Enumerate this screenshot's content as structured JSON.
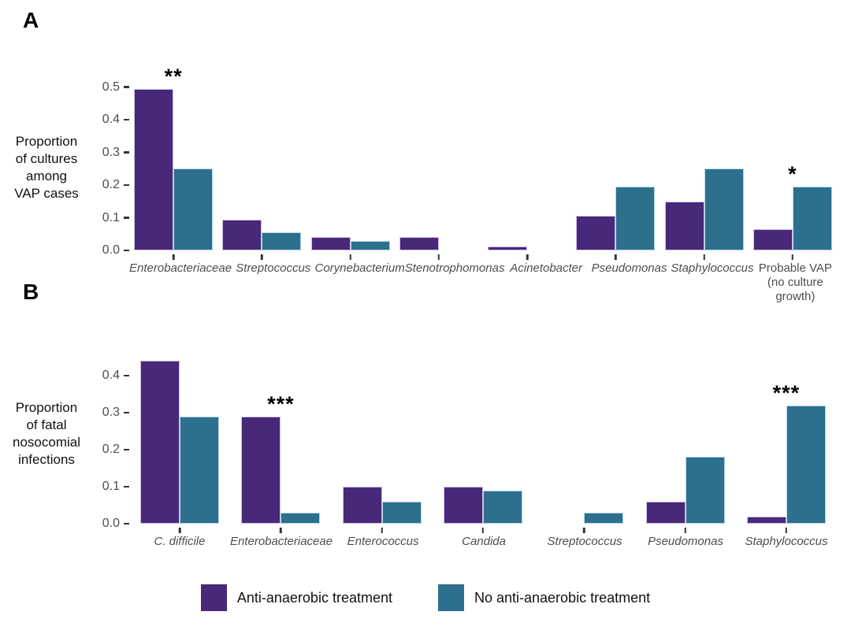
{
  "figure": {
    "panel_a_letter": "A",
    "panel_b_letter": "B"
  },
  "legend": {
    "items": [
      {
        "label": "Anti-anaerobic treatment",
        "color": "#482878"
      },
      {
        "label": "No anti-anaerobic treatment",
        "color": "#2d708e"
      }
    ]
  },
  "chart_data": [
    {
      "panel": "A",
      "type": "bar",
      "title": "",
      "ylabel": "Proportion of cultures among VAP cases",
      "ylabel_lines": [
        "Proportion",
        "of cultures",
        "among",
        "VAP cases"
      ],
      "ylim": [
        0,
        0.5
      ],
      "yticks": [
        0.0,
        0.1,
        0.2,
        0.3,
        0.4,
        0.5
      ],
      "grid": false,
      "legend_position": "bottom",
      "categories": [
        {
          "label": "Enterobacteriaceae",
          "italic": true
        },
        {
          "label": "Streptococcus",
          "italic": true
        },
        {
          "label": "Corynebacterium",
          "italic": true
        },
        {
          "label": "Stenotrophomonas",
          "italic": true
        },
        {
          "label": "Acinetobacter",
          "italic": true
        },
        {
          "label": "Pseudomonas",
          "italic": true
        },
        {
          "label": "Staphylococcus",
          "italic": true
        },
        {
          "label": "Probable VAP\n(no culture growth)",
          "italic": false
        }
      ],
      "series": [
        {
          "name": "Anti-anaerobic treatment",
          "color": "#482878",
          "stroke": "#cdc2e6",
          "values": [
            0.495,
            0.095,
            0.04,
            0.04,
            0.013,
            0.105,
            0.15,
            0.065
          ]
        },
        {
          "name": "No anti-anaerobic treatment",
          "color": "#2d708e",
          "stroke": "#b3d6e6",
          "values": [
            0.25,
            0.055,
            0.03,
            null,
            null,
            0.195,
            0.25,
            0.195
          ]
        }
      ],
      "significance": [
        {
          "index": 0,
          "category": "Enterobacteriaceae",
          "stars": "**"
        },
        {
          "index": 7,
          "category": "Probable VAP (no culture growth)",
          "stars": "*"
        }
      ]
    },
    {
      "panel": "B",
      "type": "bar",
      "title": "",
      "ylabel": "Proportion of fatal nosocomial infections",
      "ylabel_lines": [
        "Proportion",
        "of fatal",
        "nosocomial",
        "infections"
      ],
      "ylim": [
        0,
        0.4
      ],
      "yticks": [
        0.0,
        0.1,
        0.2,
        0.3,
        0.4
      ],
      "grid": false,
      "legend_position": "bottom",
      "categories": [
        {
          "label": "C. difficile",
          "italic": true
        },
        {
          "label": "Enterobacteriaceae",
          "italic": true
        },
        {
          "label": "Enterococcus",
          "italic": true
        },
        {
          "label": "Candida",
          "italic": true
        },
        {
          "label": "Streptococcus",
          "italic": true
        },
        {
          "label": "Pseudomonas",
          "italic": true
        },
        {
          "label": "Staphylococcus",
          "italic": true
        }
      ],
      "series": [
        {
          "name": "Anti-anaerobic treatment",
          "color": "#482878",
          "stroke": "#cdc2e6",
          "values": [
            0.44,
            0.29,
            0.1,
            0.1,
            null,
            0.06,
            0.02
          ]
        },
        {
          "name": "No anti-anaerobic treatment",
          "color": "#2d708e",
          "stroke": "#b3d6e6",
          "values": [
            0.29,
            0.03,
            0.06,
            0.09,
            0.03,
            0.18,
            0.32
          ]
        }
      ],
      "significance": [
        {
          "index": 1,
          "category": "Enterobacteriaceae",
          "stars": "***"
        },
        {
          "index": 6,
          "category": "Staphylococcus",
          "stars": "***"
        }
      ]
    }
  ]
}
